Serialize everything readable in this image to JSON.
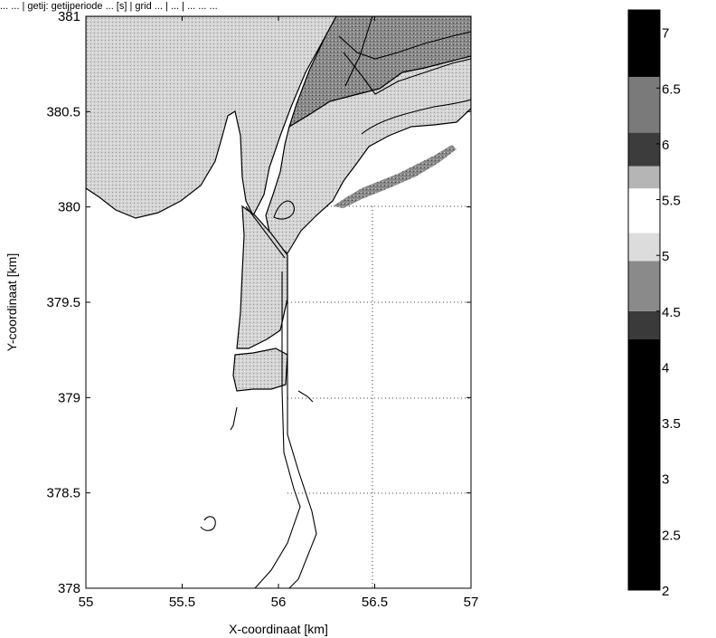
{
  "chart_data": {
    "type": "heatmap",
    "title": "... ... | getij: getijperiode ... [s] | grid ... | ... | ... ... ...",
    "xlabel": "X-coordinaat [km]",
    "ylabel": "Y-coordinaat [km]",
    "xlim": [
      55,
      57
    ],
    "ylim": [
      378,
      381
    ],
    "xticks": [
      "55",
      "55.5",
      "56",
      "56.5",
      "57"
    ],
    "yticks": [
      "378",
      "378.5",
      "379",
      "379.5",
      "380",
      "380.5",
      "381"
    ],
    "grid": "dotted, lower-right region only",
    "colorbar": {
      "range": [
        2,
        7.2
      ],
      "ticks": [
        "2",
        "2.5",
        "3",
        "3.5",
        "4",
        "4.5",
        "5",
        "5.5",
        "6",
        "6.5",
        "7"
      ],
      "bands": [
        {
          "from": 2.0,
          "to": 4.25,
          "color": "#000000"
        },
        {
          "from": 4.25,
          "to": 4.5,
          "color": "#3a3a3a"
        },
        {
          "from": 4.5,
          "to": 4.95,
          "color": "#8a8a8a"
        },
        {
          "from": 4.95,
          "to": 5.2,
          "color": "#dcdcdc"
        },
        {
          "from": 5.2,
          "to": 5.6,
          "color": "#ffffff"
        },
        {
          "from": 5.6,
          "to": 5.8,
          "color": "#b5b5b5"
        },
        {
          "from": 5.8,
          "to": 6.1,
          "color": "#3c3c3c"
        },
        {
          "from": 6.1,
          "to": 6.6,
          "color": "#7a7a7a"
        },
        {
          "from": 6.6,
          "to": 7.2,
          "color": "#000000"
        }
      ]
    },
    "colors": {
      "land_light": "#d0d0d0",
      "channel_dark": "#858585",
      "contour": "#000000"
    }
  }
}
